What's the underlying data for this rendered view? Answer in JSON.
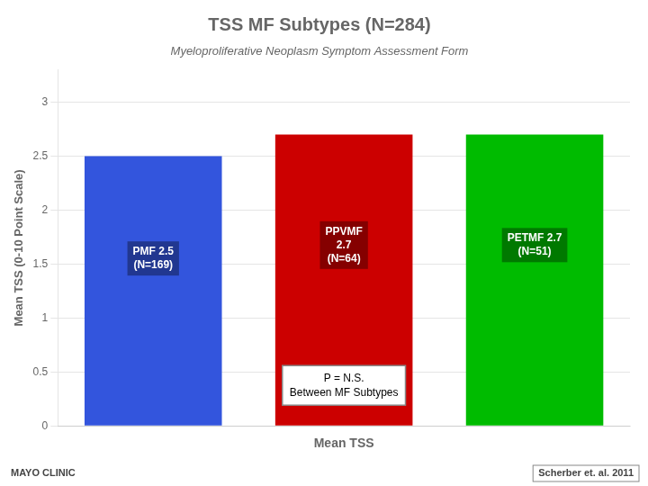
{
  "chart_data": {
    "type": "bar",
    "title": "TSS MF Subtypes (N=284)",
    "subtitle": "Myeloproliferative Neoplasm Symptom Assessment Form",
    "categories": [
      "PMF",
      "PPVMF",
      "PETMF"
    ],
    "values": [
      2.5,
      2.7,
      2.7
    ],
    "colors": [
      "#3355DD",
      "#CC0000",
      "#00BB00"
    ],
    "data_labels": true,
    "value_labels": [
      "PMF 2.5\n(N=169)",
      "PPVMF\n2.7\n(N=64)",
      "PETMF 2.7\n(N=51)"
    ],
    "xlabel": "Mean TSS",
    "ylabel": "Mean TSS (0-10 Point Scale)",
    "ylim": [
      0,
      3.3
    ],
    "yticks": [
      0,
      0.5,
      1,
      1.5,
      2,
      2.5,
      3
    ],
    "grid": "y",
    "tick_labels": "y",
    "annotations": [
      "P = N.S.\nBetween MF Subtypes"
    ],
    "footnotes": [
      "MAYO CLINIC",
      "Scherber et. al. 2011"
    ]
  }
}
